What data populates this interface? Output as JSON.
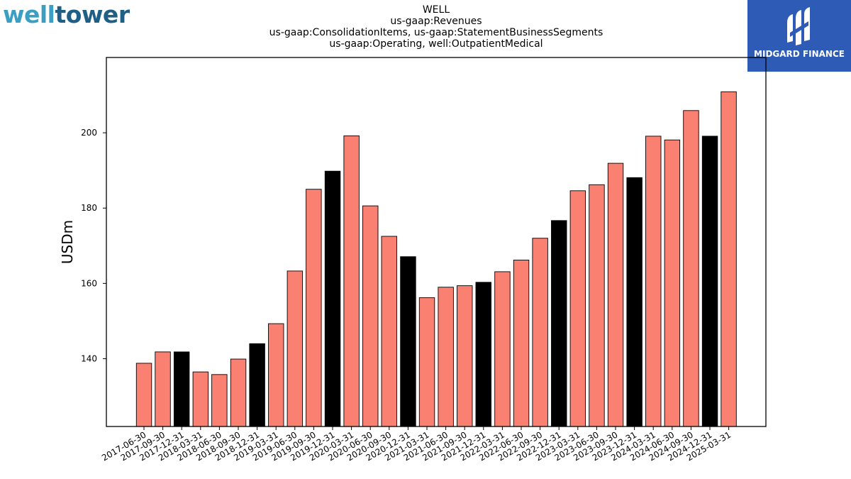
{
  "logos": {
    "left_part1": "well",
    "left_part2": "tower",
    "right_text": "MIDGARD FINANCE"
  },
  "chart_data": {
    "type": "bar",
    "title": [
      "WELL",
      "us-gaap:Revenues",
      "us-gaap:ConsolidationItems, us-gaap:StatementBusinessSegments",
      "us-gaap:Operating, well:OutpatientMedical"
    ],
    "ylabel": "USDm",
    "xlabel": "",
    "ylim": [
      122,
      220
    ],
    "yticks": [
      140,
      160,
      180,
      200
    ],
    "grid": false,
    "colors": {
      "quarter": "#fa8072",
      "year_end": "#000000",
      "edge": "#000000"
    },
    "categories": [
      "2017-06-30",
      "2017-09-30",
      "2017-12-31",
      "2018-03-31",
      "2018-06-30",
      "2018-09-30",
      "2018-12-31",
      "2019-03-31",
      "2019-06-30",
      "2019-09-30",
      "2019-12-31",
      "2020-03-31",
      "2020-06-30",
      "2020-09-30",
      "2020-12-31",
      "2021-03-31",
      "2021-06-30",
      "2021-09-30",
      "2021-12-31",
      "2022-03-31",
      "2022-06-30",
      "2022-09-30",
      "2022-12-31",
      "2023-03-31",
      "2023-06-30",
      "2023-09-30",
      "2023-12-31",
      "2024-03-31",
      "2024-06-30",
      "2024-09-30",
      "2024-12-31",
      "2025-03-31"
    ],
    "values": [
      138.8,
      141.8,
      141.8,
      136.5,
      135.8,
      139.9,
      144.0,
      149.3,
      163.3,
      185.0,
      189.8,
      199.2,
      180.6,
      172.5,
      167.1,
      156.2,
      159.0,
      159.4,
      160.3,
      163.1,
      166.2,
      172.0,
      176.7,
      184.6,
      186.2,
      191.9,
      188.1,
      199.1,
      198.1,
      205.9,
      199.1,
      210.9
    ]
  }
}
